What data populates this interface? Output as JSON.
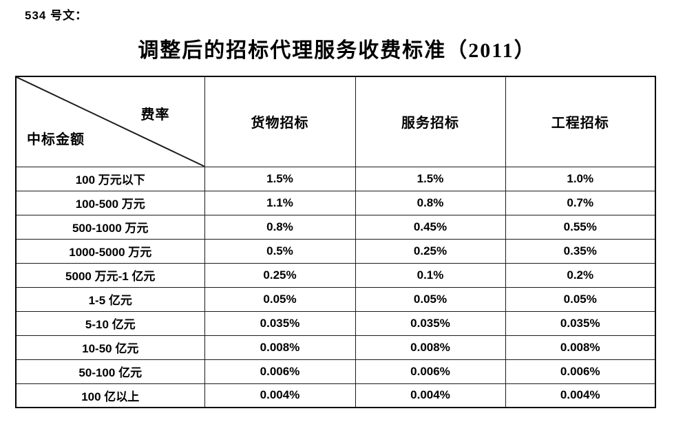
{
  "doc_label": "534 号文：",
  "title": "调整后的招标代理服务收费标准（2011）",
  "colors": {
    "page_background": "#ffffff",
    "text": "#000000",
    "table_border": "#1a1a1a"
  },
  "table": {
    "corner": {
      "top_right_label": "费率",
      "bottom_left_label": "中标金额"
    },
    "columns": [
      "货物招标",
      "服务招标",
      "工程招标"
    ],
    "rows": [
      {
        "label": "100 万元以下",
        "values": [
          "1.5%",
          "1.5%",
          "1.0%"
        ]
      },
      {
        "label": "100-500 万元",
        "values": [
          "1.1%",
          "0.8%",
          "0.7%"
        ]
      },
      {
        "label": "500-1000 万元",
        "values": [
          "0.8%",
          "0.45%",
          "0.55%"
        ]
      },
      {
        "label": "1000-5000 万元",
        "values": [
          "0.5%",
          "0.25%",
          "0.35%"
        ]
      },
      {
        "label": "5000 万元-1 亿元",
        "values": [
          "0.25%",
          "0.1%",
          "0.2%"
        ]
      },
      {
        "label": "1-5 亿元",
        "values": [
          "0.05%",
          "0.05%",
          "0.05%"
        ]
      },
      {
        "label": "5-10 亿元",
        "values": [
          "0.035%",
          "0.035%",
          "0.035%"
        ]
      },
      {
        "label": "10-50 亿元",
        "values": [
          "0.008%",
          "0.008%",
          "0.008%"
        ]
      },
      {
        "label": "50-100 亿元",
        "values": [
          "0.006%",
          "0.006%",
          "0.006%"
        ]
      },
      {
        "label": "100 亿以上",
        "values": [
          "0.004%",
          "0.004%",
          "0.004%"
        ]
      }
    ]
  }
}
